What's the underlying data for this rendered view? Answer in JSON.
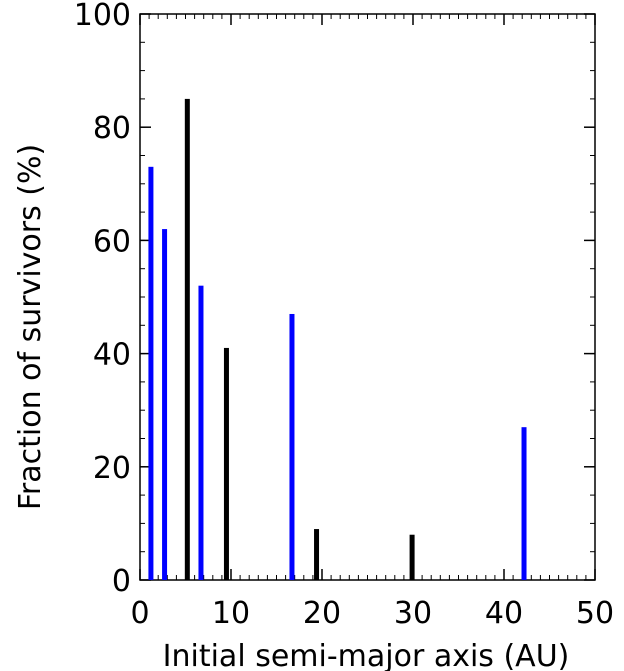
{
  "chart_data": {
    "type": "bar",
    "title": "",
    "xlabel": "Initial semi-major axis (AU)",
    "ylabel": "Fraction of survivors (%)",
    "xlim": [
      0,
      50
    ],
    "ylim": [
      0,
      100
    ],
    "xticks": [
      0,
      10,
      20,
      30,
      40,
      50
    ],
    "yticks": [
      0,
      20,
      40,
      60,
      80,
      100
    ],
    "x_minor_step": 1,
    "y_minor_step": 5,
    "grid": false,
    "series": [
      {
        "color": "#0000ff",
        "points": [
          {
            "x": 1.2,
            "y": 73
          },
          {
            "x": 2.7,
            "y": 62
          },
          {
            "x": 6.7,
            "y": 52
          },
          {
            "x": 16.7,
            "y": 47
          },
          {
            "x": 42.2,
            "y": 27
          }
        ]
      },
      {
        "color": "#000000",
        "points": [
          {
            "x": 5.2,
            "y": 85
          },
          {
            "x": 9.5,
            "y": 41
          },
          {
            "x": 19.4,
            "y": 9
          },
          {
            "x": 29.9,
            "y": 8
          }
        ]
      }
    ]
  }
}
